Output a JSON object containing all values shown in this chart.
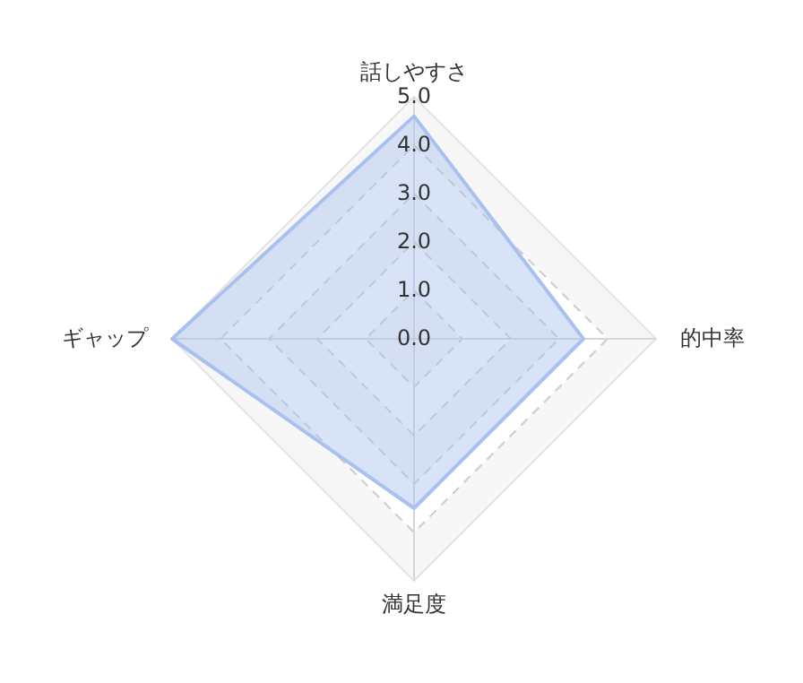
{
  "chart_data": {
    "type": "radar",
    "categories": [
      "話しやすさ",
      "的中率",
      "満足度",
      "ギャップ"
    ],
    "series": [
      {
        "color": "#a9c1ef",
        "values": [
          4.6,
          3.5,
          3.5,
          5.0
        ]
      }
    ],
    "ylim": [
      0,
      5
    ],
    "yticks": [
      {
        "value": 0,
        "label": "0.0"
      },
      {
        "value": 1,
        "label": "1.0"
      },
      {
        "value": 2,
        "label": "2.0"
      },
      {
        "value": 3,
        "label": "3.0"
      },
      {
        "value": 4,
        "label": "4.0"
      },
      {
        "value": 5,
        "label": "5.0"
      }
    ],
    "grid": true
  }
}
